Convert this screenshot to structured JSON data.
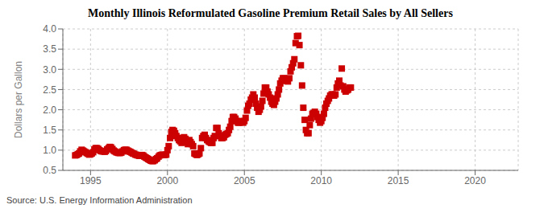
{
  "chart_data": {
    "type": "scatter",
    "title": "Monthly Illinois Reformulated Gasoline Premium Retail Sales by All Sellers",
    "y_label": "Dollars per Gallon",
    "annotations": [
      "Source: U.S. Energy Information Administration"
    ],
    "color": "#cc0000",
    "marker": "square",
    "grid": true,
    "xlim": [
      1993.2,
      2022.8
    ],
    "xticks": [
      1995,
      2000,
      2005,
      2010,
      2015,
      2020
    ],
    "ylim": [
      0.5,
      4.0
    ],
    "yticks": [
      0.5,
      {
        "value": 1.0,
        "label": "1.0"
      },
      1.5,
      {
        "value": 2.0,
        "label": "2.0"
      },
      2.5,
      {
        "value": 3.0,
        "label": "3.0"
      },
      3.5,
      {
        "value": 4.0,
        "label": "4.0"
      }
    ],
    "x": [
      1994.0,
      1994.08,
      1994.17,
      1994.25,
      1994.33,
      1994.42,
      1994.5,
      1994.58,
      1994.67,
      1994.75,
      1994.83,
      1994.92,
      1995.0,
      1995.08,
      1995.17,
      1995.25,
      1995.33,
      1995.42,
      1995.5,
      1995.58,
      1995.67,
      1995.75,
      1995.83,
      1995.92,
      1996.0,
      1996.08,
      1996.17,
      1996.25,
      1996.33,
      1996.42,
      1996.5,
      1996.58,
      1996.67,
      1996.75,
      1996.83,
      1996.92,
      1997.0,
      1997.08,
      1997.17,
      1997.25,
      1997.33,
      1997.42,
      1997.5,
      1997.58,
      1997.67,
      1997.75,
      1997.83,
      1997.92,
      1998.0,
      1998.08,
      1998.17,
      1998.25,
      1998.33,
      1998.42,
      1998.5,
      1998.58,
      1998.67,
      1998.75,
      1998.83,
      1998.92,
      1999.0,
      1999.08,
      1999.17,
      1999.25,
      1999.33,
      1999.42,
      1999.5,
      1999.58,
      1999.67,
      1999.75,
      1999.83,
      1999.92,
      2000.0,
      2000.08,
      2000.17,
      2000.25,
      2000.33,
      2000.42,
      2000.5,
      2000.58,
      2000.67,
      2000.75,
      2000.83,
      2000.92,
      2001.0,
      2001.08,
      2001.17,
      2001.25,
      2001.33,
      2001.42,
      2001.5,
      2001.58,
      2001.67,
      2001.75,
      2001.83,
      2001.92,
      2002.0,
      2002.08,
      2002.17,
      2002.25,
      2002.33,
      2002.42,
      2002.5,
      2002.58,
      2002.67,
      2002.75,
      2002.83,
      2002.92,
      2003.0,
      2003.08,
      2003.17,
      2003.25,
      2003.33,
      2003.42,
      2003.5,
      2003.58,
      2003.67,
      2003.75,
      2003.83,
      2003.92,
      2004.0,
      2004.08,
      2004.17,
      2004.25,
      2004.33,
      2004.42,
      2004.5,
      2004.58,
      2004.67,
      2004.75,
      2004.83,
      2004.92,
      2005.0,
      2005.08,
      2005.17,
      2005.25,
      2005.33,
      2005.42,
      2005.5,
      2005.58,
      2005.67,
      2005.75,
      2005.83,
      2005.92,
      2006.0,
      2006.08,
      2006.17,
      2006.25,
      2006.33,
      2006.42,
      2006.5,
      2006.58,
      2006.67,
      2006.75,
      2006.83,
      2006.92,
      2007.0,
      2007.08,
      2007.17,
      2007.25,
      2007.33,
      2007.42,
      2007.5,
      2007.58,
      2007.67,
      2007.75,
      2007.83,
      2007.92,
      2008.0,
      2008.08,
      2008.17,
      2008.25,
      2008.33,
      2008.42,
      2008.5,
      2008.58,
      2008.67,
      2008.75,
      2008.83,
      2008.92,
      2009.0,
      2009.08,
      2009.17,
      2009.25,
      2009.33,
      2009.42,
      2009.5,
      2009.58,
      2009.67,
      2009.75,
      2009.83,
      2009.92,
      2010.0,
      2010.08,
      2010.17,
      2010.25,
      2010.33,
      2010.42,
      2010.5,
      2010.58,
      2010.67,
      2010.75,
      2010.83,
      2010.92,
      2011.0,
      2011.08,
      2011.17,
      2011.25,
      2011.33,
      2011.42,
      2011.5,
      2011.58,
      2011.67,
      2011.75,
      2011.83,
      2011.92
    ],
    "values": [
      0.87,
      0.88,
      0.9,
      0.92,
      0.97,
      1.01,
      0.99,
      0.97,
      0.95,
      0.93,
      0.91,
      0.89,
      0.9,
      0.92,
      0.95,
      1.02,
      1.05,
      1.05,
      1.03,
      1.0,
      0.98,
      0.97,
      0.97,
      0.96,
      0.98,
      1.02,
      1.05,
      1.08,
      1.07,
      1.03,
      0.99,
      0.97,
      0.95,
      0.94,
      0.93,
      0.93,
      0.94,
      0.97,
      1.0,
      1.01,
      1.01,
      0.99,
      0.97,
      0.96,
      0.94,
      0.92,
      0.91,
      0.89,
      0.88,
      0.87,
      0.86,
      0.87,
      0.88,
      0.87,
      0.84,
      0.82,
      0.8,
      0.78,
      0.76,
      0.74,
      0.73,
      0.73,
      0.75,
      0.78,
      0.8,
      0.84,
      0.87,
      0.88,
      0.89,
      0.88,
      0.88,
      0.89,
      1.0,
      1.1,
      1.3,
      1.45,
      1.5,
      1.48,
      1.42,
      1.35,
      1.3,
      1.25,
      1.22,
      1.18,
      1.3,
      1.32,
      1.28,
      1.2,
      1.15,
      1.25,
      1.2,
      1.15,
      1.1,
      0.92,
      0.9,
      0.88,
      0.9,
      0.92,
      1.05,
      1.3,
      1.35,
      1.38,
      1.3,
      1.25,
      1.22,
      1.2,
      1.18,
      1.18,
      1.3,
      1.35,
      1.55,
      1.55,
      1.42,
      1.35,
      1.3,
      1.3,
      1.32,
      1.38,
      1.4,
      1.42,
      1.5,
      1.58,
      1.72,
      1.82,
      1.82,
      1.78,
      1.72,
      1.68,
      1.68,
      1.7,
      1.72,
      1.68,
      1.72,
      1.8,
      1.98,
      2.1,
      2.15,
      2.25,
      2.3,
      2.38,
      2.3,
      2.15,
      2.05,
      1.95,
      2.0,
      2.08,
      2.22,
      2.4,
      2.55,
      2.55,
      2.45,
      2.38,
      2.3,
      2.2,
      2.15,
      2.12,
      2.2,
      2.28,
      2.38,
      2.5,
      2.65,
      2.72,
      2.78,
      2.78,
      2.72,
      2.72,
      2.7,
      2.78,
      2.95,
      3.05,
      3.15,
      3.25,
      3.65,
      3.82,
      3.83,
      3.6,
      3.1,
      2.6,
      2.05,
      1.75,
      1.5,
      1.42,
      1.42,
      1.62,
      1.78,
      1.9,
      1.92,
      1.95,
      1.9,
      1.82,
      1.75,
      1.68,
      1.72,
      1.8,
      1.9,
      2.05,
      2.15,
      2.22,
      2.28,
      2.35,
      2.38,
      2.38,
      2.35,
      2.38,
      2.55,
      2.65,
      2.72,
      2.6,
      3.02,
      2.58,
      2.5,
      2.45,
      2.48,
      2.5,
      2.55,
      2.55
    ]
  }
}
